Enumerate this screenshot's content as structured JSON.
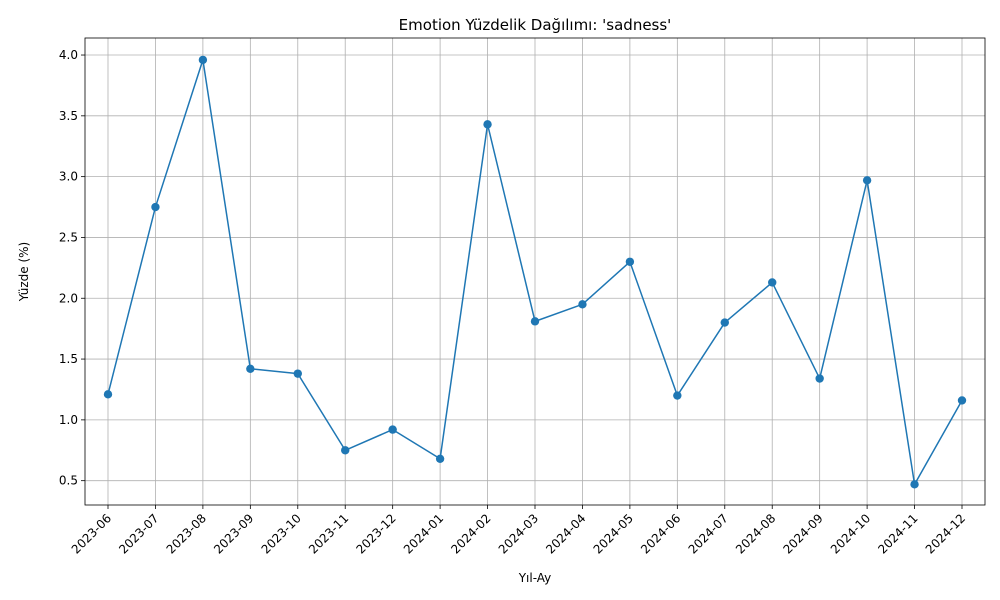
{
  "chart_data": {
    "type": "line",
    "title": "Emotion Yüzdelik Dağılımı: 'sadness'",
    "xlabel": "Yıl-Ay",
    "ylabel": "Yüzde (%)",
    "categories": [
      "2023-06",
      "2023-07",
      "2023-08",
      "2023-09",
      "2023-10",
      "2023-11",
      "2023-12",
      "2024-01",
      "2024-02",
      "2024-03",
      "2024-04",
      "2024-05",
      "2024-06",
      "2024-07",
      "2024-08",
      "2024-09",
      "2024-10",
      "2024-11",
      "2024-12"
    ],
    "series": [
      {
        "values": [
          1.21,
          2.75,
          3.96,
          1.42,
          1.38,
          0.75,
          0.92,
          0.68,
          3.43,
          1.81,
          1.95,
          2.3,
          1.2,
          1.8,
          2.13,
          1.34,
          2.97,
          0.47,
          1.16
        ],
        "color": "#1f77b4",
        "marker": "circle"
      }
    ],
    "yticks": [
      "0.5",
      "1.0",
      "1.5",
      "2.0",
      "2.5",
      "3.0",
      "3.5",
      "4.0"
    ],
    "ylim": [
      0.3,
      4.14
    ],
    "grid": true,
    "xtick_rotation": 45
  }
}
